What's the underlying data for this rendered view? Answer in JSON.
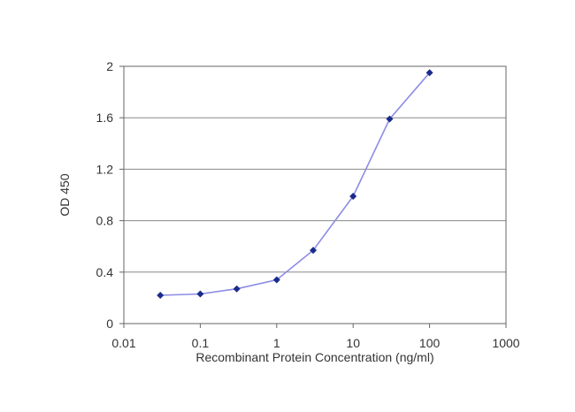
{
  "chart_data": {
    "type": "line",
    "xlabel": "Recombinant Protein Concentration (ng/ml)",
    "ylabel": "OD 450",
    "x_scale": "log",
    "xlim": [
      0.01,
      1000
    ],
    "ylim": [
      0,
      2
    ],
    "x_ticks": [
      "0.01",
      "0.1",
      "1",
      "10",
      "100",
      "1000"
    ],
    "y_ticks": [
      "0",
      "0.4",
      "0.8",
      "1.2",
      "1.6",
      "2"
    ],
    "grid": "horizontal",
    "series": [
      {
        "x": [
          0.03,
          0.1,
          0.3,
          1,
          3,
          10,
          30,
          100
        ],
        "values": [
          0.22,
          0.23,
          0.27,
          0.34,
          0.57,
          0.99,
          1.59,
          1.95
        ]
      }
    ],
    "colors": {
      "line": "#8c8ce6",
      "marker": "#1a2b8c",
      "grid": "#888888",
      "frame": "#666666"
    }
  }
}
